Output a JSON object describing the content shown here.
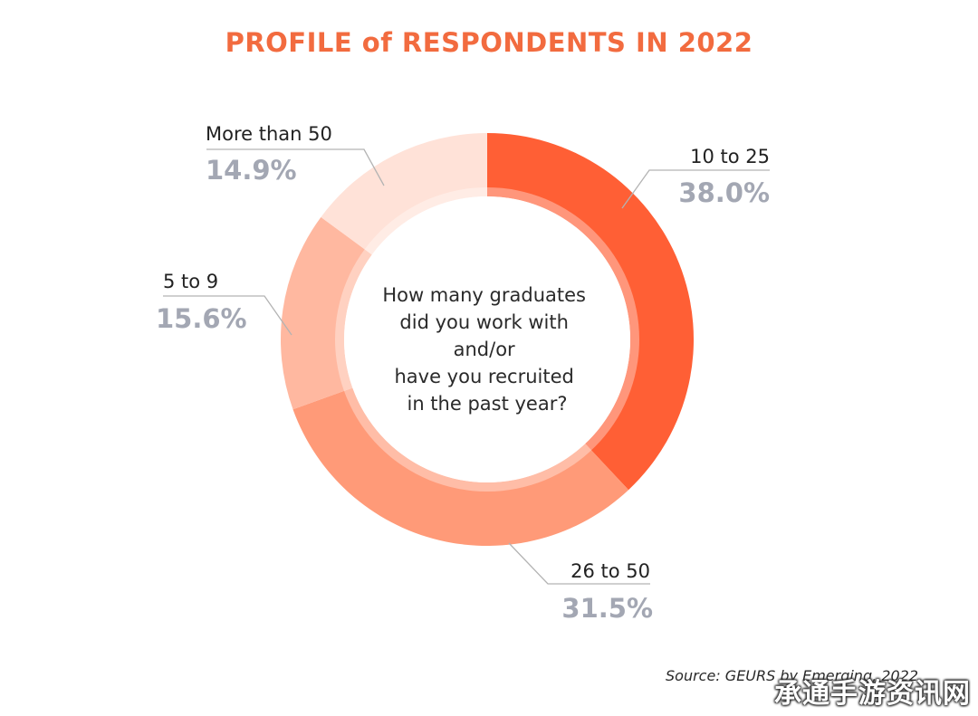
{
  "title": "PROFILE of RESPONDENTS IN 2022",
  "chart_data": {
    "type": "pie",
    "style": "donut",
    "center_text": [
      "How many graduates",
      "did you work with",
      "and/or",
      "have you recruited",
      "in the past year?"
    ],
    "slices": [
      {
        "label": "10 to 25",
        "value": 38.0,
        "display": "38.0%",
        "color": "#ff5f35"
      },
      {
        "label": "26 to 50",
        "value": 31.5,
        "display": "31.5%",
        "color": "#ff9a78"
      },
      {
        "label": "5 to 9",
        "value": 15.6,
        "display": "15.6%",
        "color": "#ffb8a0"
      },
      {
        "label": "More than 50",
        "value": 14.9,
        "display": "14.9%",
        "color": "#ffe2d8"
      }
    ],
    "source": "Source: GEURS by Emerging, 2022"
  },
  "watermark": "承通手游资讯网"
}
